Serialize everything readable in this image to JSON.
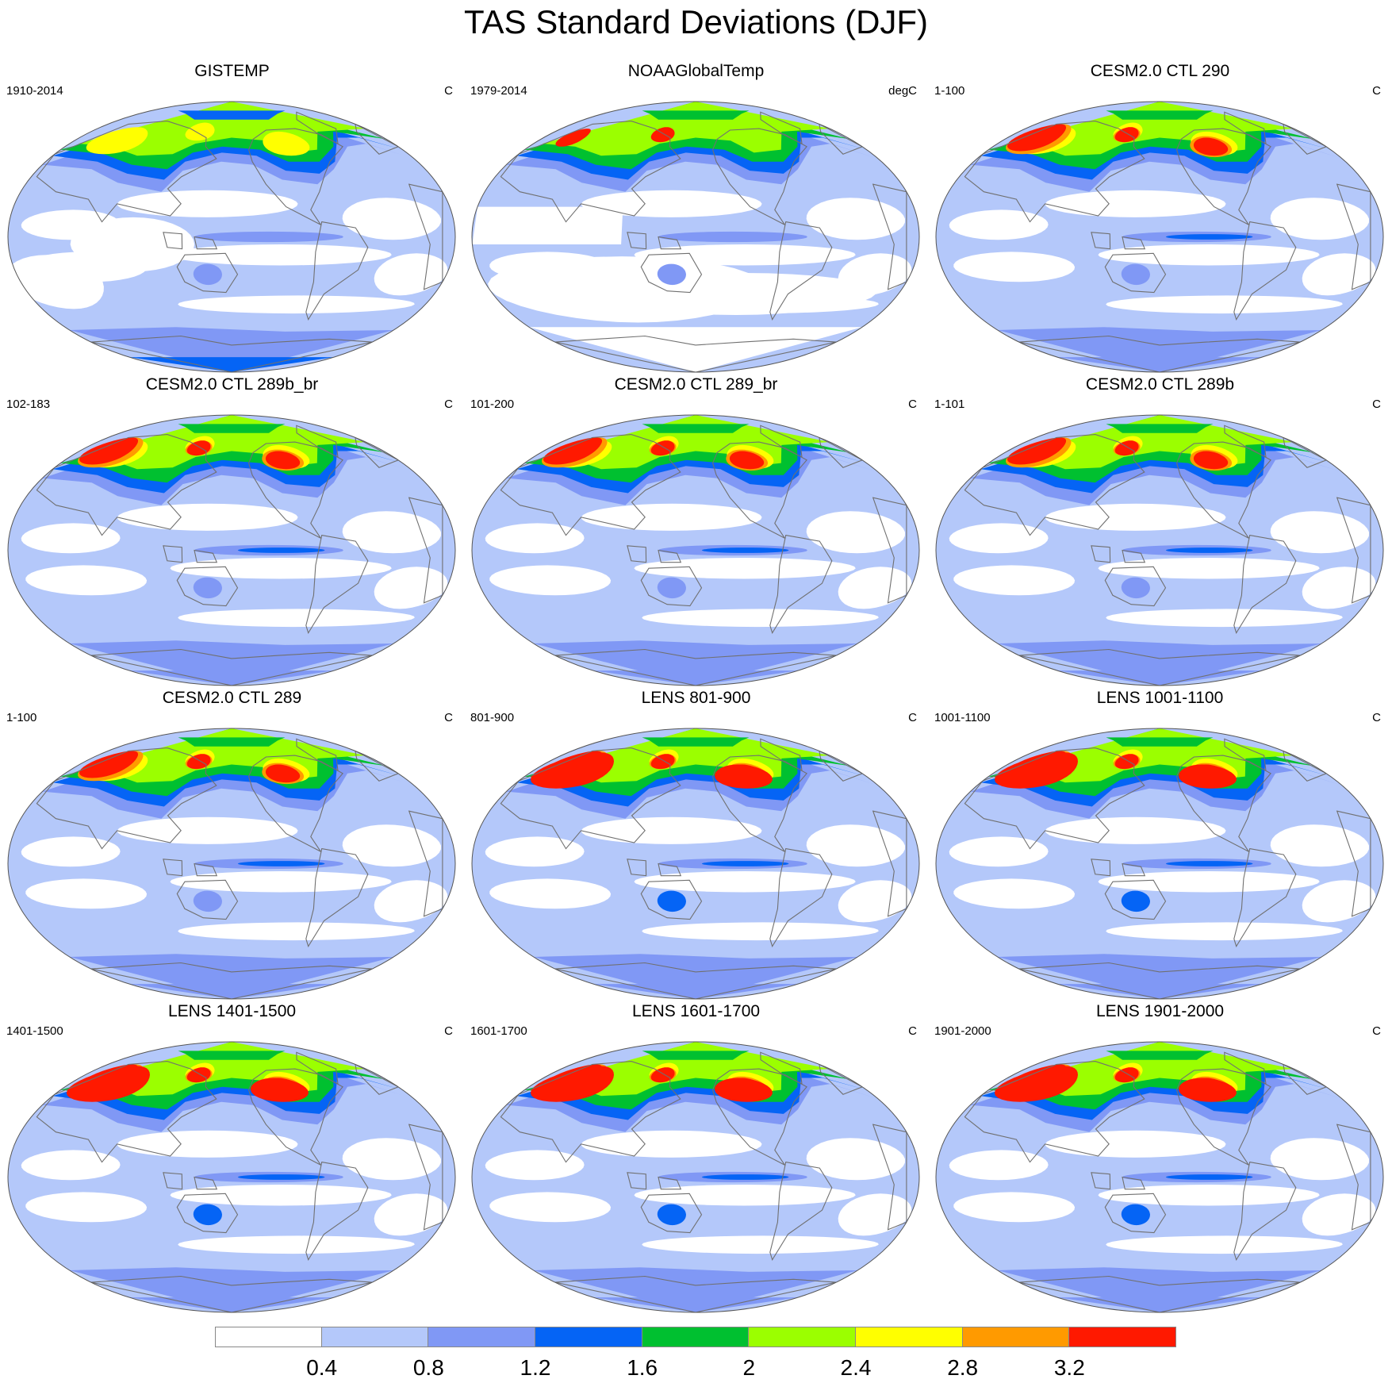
{
  "title": "TAS Standard Deviations (DJF)",
  "colorbar": {
    "colors": [
      "#ffffff",
      "#b4c8fa",
      "#8098f5",
      "#0564f5",
      "#00c030",
      "#9bff00",
      "#ffff00",
      "#ff9a00",
      "#ff1900"
    ],
    "labels": [
      "0.4",
      "0.8",
      "1.2",
      "1.6",
      "2",
      "2.4",
      "2.8",
      "3.2"
    ]
  },
  "panels": [
    {
      "title": "GISTEMP",
      "period": "1910-2014",
      "units": "C",
      "pattern": "gistemp",
      "strength": 0.55
    },
    {
      "title": "NOAAGlobalTemp",
      "period": "1979-2014",
      "units": "degC",
      "pattern": "noaa",
      "strength": 0.45
    },
    {
      "title": "CESM2.0 CTL 290",
      "period": "1-100",
      "units": "C",
      "pattern": "model",
      "strength": 0.78
    },
    {
      "title": "CESM2.0 CTL 289b_br",
      "period": "102-183",
      "units": "C",
      "pattern": "model",
      "strength": 0.75
    },
    {
      "title": "CESM2.0 CTL 289_br",
      "period": "101-200",
      "units": "C",
      "pattern": "model",
      "strength": 0.8
    },
    {
      "title": "CESM2.0 CTL 289b",
      "period": "1-101",
      "units": "C",
      "pattern": "model",
      "strength": 0.8
    },
    {
      "title": "CESM2.0 CTL 289",
      "period": "1-100",
      "units": "C",
      "pattern": "model",
      "strength": 0.72
    },
    {
      "title": "LENS 801-900",
      "period": "801-900",
      "units": "C",
      "pattern": "lens",
      "strength": 1.0
    },
    {
      "title": "LENS 1001-1100",
      "period": "1001-1100",
      "units": "C",
      "pattern": "lens",
      "strength": 1.0
    },
    {
      "title": "LENS 1401-1500",
      "period": "1401-1500",
      "units": "C",
      "pattern": "lens",
      "strength": 1.0
    },
    {
      "title": "LENS 1601-1700",
      "period": "1601-1700",
      "units": "C",
      "pattern": "lens",
      "strength": 1.0
    },
    {
      "title": "LENS 1901-2000",
      "period": "1901-2000",
      "units": "C",
      "pattern": "lens",
      "strength": 1.0
    }
  ]
}
